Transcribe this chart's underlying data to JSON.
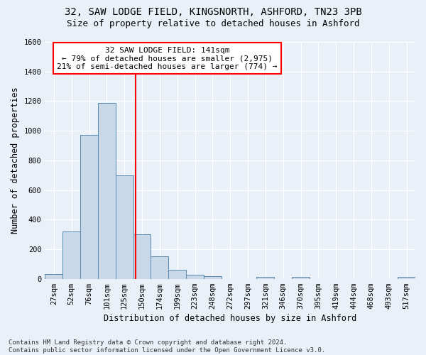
{
  "title": "32, SAW LODGE FIELD, KINGSNORTH, ASHFORD, TN23 3PB",
  "subtitle": "Size of property relative to detached houses in Ashford",
  "xlabel": "Distribution of detached houses by size in Ashford",
  "ylabel": "Number of detached properties",
  "categories": [
    "27sqm",
    "52sqm",
    "76sqm",
    "101sqm",
    "125sqm",
    "150sqm",
    "174sqm",
    "199sqm",
    "223sqm",
    "248sqm",
    "272sqm",
    "297sqm",
    "321sqm",
    "346sqm",
    "370sqm",
    "395sqm",
    "419sqm",
    "444sqm",
    "468sqm",
    "493sqm",
    "517sqm"
  ],
  "values": [
    30,
    320,
    970,
    1190,
    700,
    300,
    150,
    60,
    25,
    20,
    0,
    0,
    15,
    0,
    15,
    0,
    0,
    0,
    0,
    0,
    15
  ],
  "bar_color": "#c8d8e8",
  "bar_edge_color": "#5a8ab0",
  "annotation_text": "32 SAW LODGE FIELD: 141sqm\n← 79% of detached houses are smaller (2,975)\n21% of semi-detached houses are larger (774) →",
  "annotation_box_color": "white",
  "annotation_box_edge_color": "red",
  "vline_color": "red",
  "vline_x": 4.64,
  "ylim": [
    0,
    1600
  ],
  "yticks": [
    0,
    200,
    400,
    600,
    800,
    1000,
    1200,
    1400,
    1600
  ],
  "footnote": "Contains HM Land Registry data © Crown copyright and database right 2024.\nContains public sector information licensed under the Open Government Licence v3.0.",
  "bg_color": "#eaf0f8",
  "plot_bg_color": "#eaf0f8",
  "grid_color": "#ffffff",
  "title_fontsize": 10,
  "subtitle_fontsize": 9,
  "axis_label_fontsize": 8.5,
  "tick_fontsize": 7.5,
  "annotation_fontsize": 8,
  "footnote_fontsize": 6.5
}
